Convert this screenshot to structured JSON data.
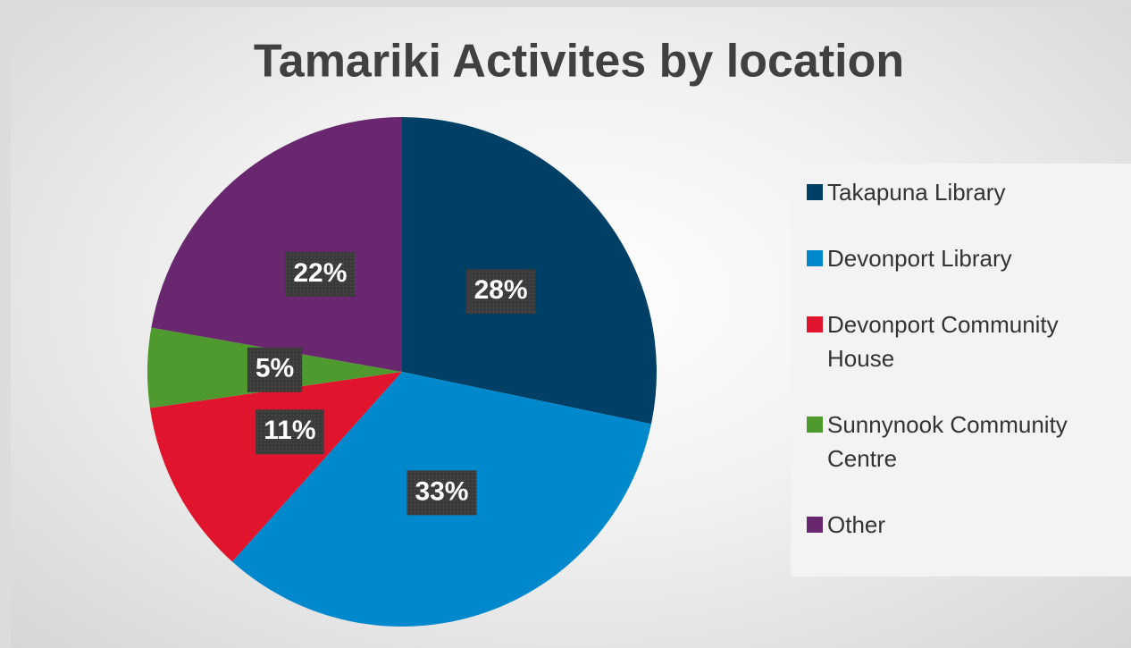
{
  "chart_data": {
    "type": "pie",
    "title": "Tamariki Activites by location",
    "categories": [
      "Takapuna Library",
      "Devonport Library",
      "Devonport Community House",
      "Sunnynook Community Centre",
      "Other"
    ],
    "values": [
      28,
      33,
      11,
      5,
      22
    ],
    "value_labels": [
      "28%",
      "33%",
      "11%",
      "5%",
      "22%"
    ],
    "colors": [
      "#003f66",
      "#0088cc",
      "#e0142d",
      "#4e9a2f",
      "#68276e"
    ],
    "legend": "right"
  }
}
